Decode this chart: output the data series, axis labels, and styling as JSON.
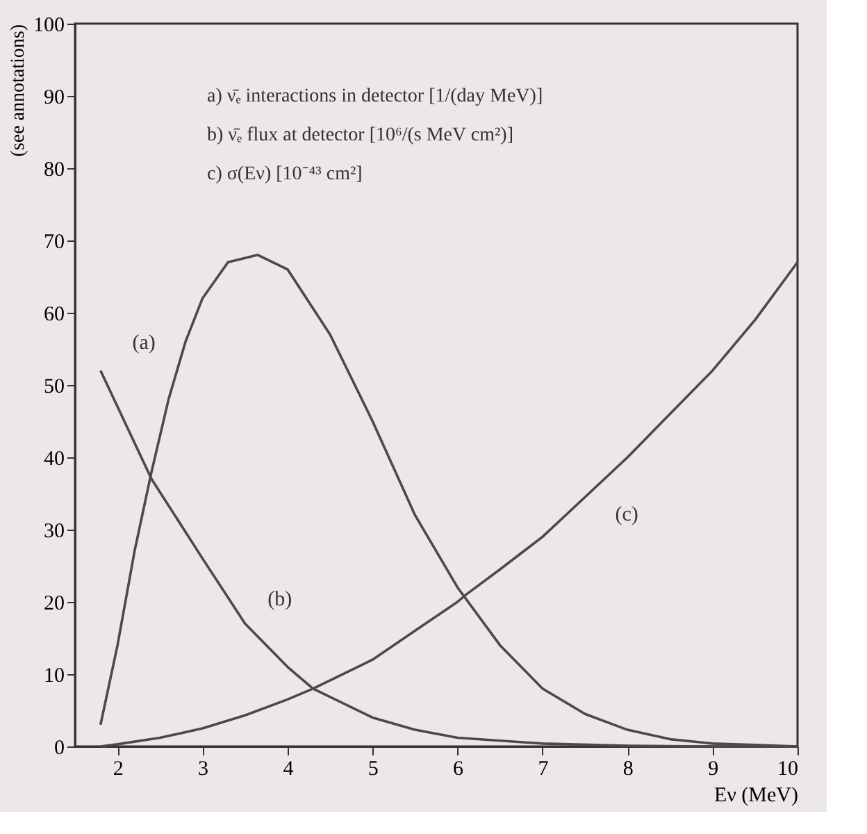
{
  "chart_data": {
    "type": "line",
    "xlabel": "Eν (MeV)",
    "ylabel": "(see annotations)",
    "xlim": [
      1.5,
      10
    ],
    "xticks": [
      2,
      3,
      4,
      5,
      6,
      7,
      8,
      9,
      10
    ],
    "ylim": [
      0,
      100
    ],
    "yticks": [
      0,
      10,
      20,
      30,
      40,
      50,
      60,
      70,
      80,
      90,
      100
    ],
    "grid": false,
    "marker": "none",
    "line_style": "solid",
    "series": [
      {
        "color": "#4a4a4a",
        "x": [
          1.8,
          2.0,
          2.2,
          2.4,
          2.6,
          2.8,
          3.0,
          3.3,
          3.65,
          4.0,
          4.5,
          5.0,
          5.5,
          6.0,
          6.5,
          7.0,
          7.5,
          8.0,
          8.5,
          9.0,
          9.5,
          10.0
        ],
        "values": [
          3,
          14,
          27,
          38,
          48,
          56,
          62,
          67,
          68,
          66,
          57,
          45,
          32,
          22,
          14,
          8,
          4.5,
          2.3,
          1,
          0.4,
          0.2,
          0
        ]
      },
      {
        "color": "#4a4a4a",
        "x": [
          1.8,
          2.0,
          2.4,
          3.0,
          3.5,
          4.0,
          4.3,
          5.0,
          5.5,
          6.0,
          7.0,
          8.0,
          9.0,
          10.0
        ],
        "values": [
          52,
          47,
          37,
          26,
          17,
          11,
          8,
          4,
          2.3,
          1.2,
          0.4,
          0.1,
          0,
          0
        ]
      },
      {
        "color": "#4a4a4a",
        "x": [
          1.8,
          2.0,
          2.5,
          3.0,
          3.5,
          4.0,
          4.3,
          5.0,
          5.5,
          6.0,
          6.1,
          6.5,
          7.0,
          7.5,
          8.0,
          8.5,
          9.0,
          9.5,
          10.0
        ],
        "values": [
          0,
          0.3,
          1.2,
          2.5,
          4.3,
          6.5,
          8,
          12,
          16,
          20,
          21,
          24.5,
          29,
          34.5,
          40,
          46,
          52,
          59,
          67
        ]
      }
    ],
    "annotations": [
      "a) ν̄ₑ interactions in detector [1/(day MeV)]",
      "b) ν̄ₑ flux at detector [10⁶/(s MeV cm²)]",
      "c) σ(Eν) [10⁻⁴³ cm²]",
      {
        "text": "(a)",
        "x": 2.8,
        "y": 56
      },
      {
        "text": "(b)",
        "x": 3.5,
        "y": 17
      },
      {
        "text": "(c)",
        "x": 7.5,
        "y": 34.5
      }
    ]
  }
}
